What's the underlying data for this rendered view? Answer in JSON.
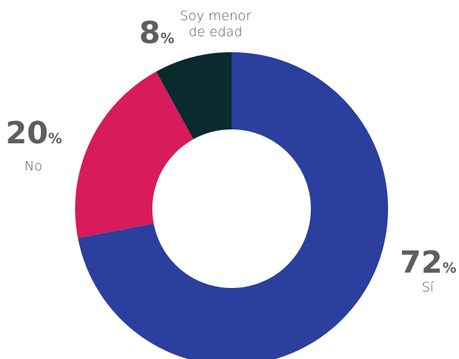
{
  "chart_data": {
    "type": "donut",
    "categories": [
      "Sí",
      "No",
      "Soy menor de edad"
    ],
    "values": [
      72,
      20,
      8
    ],
    "value_suffix": "%",
    "colors": [
      "#2b3f9e",
      "#d81b5a",
      "#0a2a30"
    ]
  }
}
